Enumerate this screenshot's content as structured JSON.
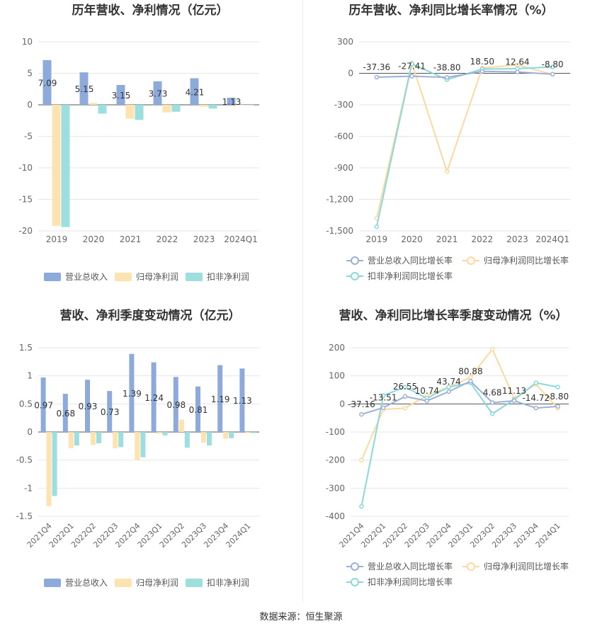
{
  "source_text": "数据来源：恒生聚源",
  "colors": {
    "revenue": "#8eaadb",
    "net_profit": "#fde3b0",
    "deducted": "#9ddede",
    "revenue_line": "#9bb0d9",
    "net_profit_line": "#fcd9a0",
    "deducted_line": "#8ad8dc",
    "grid": "#e6e6e6",
    "axis_text": "#666666"
  },
  "chart_data": [
    {
      "type": "bar",
      "title": "历年营收、净利情况（亿元）",
      "categories": [
        "2019",
        "2020",
        "2021",
        "2022",
        "2023",
        "2024Q1"
      ],
      "ylim": [
        -20,
        10
      ],
      "yticks": [
        10,
        5,
        0,
        -5,
        -10,
        -15,
        -20
      ],
      "grid": true,
      "legend_position": "bottom",
      "series": [
        {
          "name": "营业总收入",
          "values": [
            7.09,
            5.15,
            3.15,
            3.73,
            4.21,
            1.13
          ],
          "labels": [
            "7.09",
            "5.15",
            "3.15",
            "3.73",
            "4.21",
            "1.13"
          ]
        },
        {
          "name": "归母净利润",
          "values": [
            -19.2,
            0.3,
            -2.2,
            -1.2,
            -0.3,
            -0.05
          ]
        },
        {
          "name": "扣非净利润",
          "values": [
            -19.4,
            -1.4,
            -2.4,
            -1.1,
            -0.6,
            -0.05
          ]
        }
      ]
    },
    {
      "type": "line",
      "title": "历年营收、净利同比增长率情况（%）",
      "categories": [
        "2019",
        "2020",
        "2021",
        "2022",
        "2023",
        "2024Q1"
      ],
      "ylim": [
        -1500,
        300
      ],
      "yticks": [
        300,
        0,
        -300,
        -600,
        -900,
        -1200,
        -1500
      ],
      "ytick_labels": [
        "300",
        "0",
        "-300",
        "-600",
        "-900",
        "-1,200",
        "-1,500"
      ],
      "grid": true,
      "legend_position": "bottom",
      "series": [
        {
          "name": "营业总收入同比增长率",
          "values": [
            -37.36,
            -27.41,
            -38.8,
            18.5,
            12.64,
            -8.8
          ],
          "labels": [
            "-37.36",
            "-27.41",
            "-38.80",
            "18.50",
            "12.64",
            "-8.80"
          ]
        },
        {
          "name": "归母净利润同比增长率",
          "values": [
            -1380,
            100,
            -935,
            50,
            80,
            -10
          ]
        },
        {
          "name": "扣非净利润同比增长率",
          "values": [
            -1460,
            90,
            -60,
            40,
            45,
            60
          ]
        }
      ]
    },
    {
      "type": "bar",
      "title": "营收、净利季度变动情况（亿元）",
      "categories": [
        "2021Q4",
        "2022Q1",
        "2022Q2",
        "2022Q3",
        "2022Q4",
        "2023Q1",
        "2023Q2",
        "2023Q3",
        "2023Q4",
        "2024Q1"
      ],
      "ylim": [
        -1.5,
        1.5
      ],
      "yticks": [
        1.5,
        1,
        0.5,
        0,
        -0.5,
        -1,
        -1.5
      ],
      "grid": true,
      "legend_position": "bottom",
      "series": [
        {
          "name": "营业总收入",
          "values": [
            0.97,
            0.68,
            0.93,
            0.73,
            1.39,
            1.24,
            0.98,
            0.81,
            1.19,
            1.13
          ],
          "labels": [
            "0.97",
            "0.68",
            "0.93",
            "0.73",
            "1.39",
            "1.24",
            "0.98",
            "0.81",
            "1.19",
            "1.13"
          ]
        },
        {
          "name": "归母净利润",
          "values": [
            -1.32,
            -0.29,
            -0.23,
            -0.29,
            -0.5,
            -0.03,
            0.22,
            -0.19,
            -0.12,
            -0.02
          ]
        },
        {
          "name": "扣非净利润",
          "values": [
            -1.14,
            -0.24,
            -0.2,
            -0.27,
            -0.45,
            -0.06,
            -0.28,
            -0.24,
            -0.11,
            -0.02
          ]
        }
      ]
    },
    {
      "type": "line",
      "title": "营收、净利同比增长率季度变动情况（%）",
      "categories": [
        "2021Q4",
        "2022Q1",
        "2022Q2",
        "2022Q3",
        "2022Q4",
        "2023Q1",
        "2023Q2",
        "2023Q3",
        "2023Q4",
        "2024Q1"
      ],
      "ylim": [
        -400,
        200
      ],
      "yticks": [
        200,
        100,
        0,
        -100,
        -200,
        -300,
        -400
      ],
      "grid": true,
      "legend_position": "bottom",
      "series": [
        {
          "name": "营业总收入同比增长率",
          "values": [
            -37.16,
            -13.51,
            26.55,
            10.74,
            43.74,
            80.88,
            4.68,
            11.13,
            -14.72,
            -8.8
          ],
          "labels": [
            "-37.16",
            "-13.51",
            "26.55",
            "10.74",
            "43.74",
            "80.88",
            "4.68",
            "11.13",
            "-14.72",
            "-8.80"
          ]
        },
        {
          "name": "归母净利润同比增长率",
          "values": [
            -200,
            -20,
            -15,
            30,
            60,
            95,
            195,
            20,
            70,
            -15
          ]
        },
        {
          "name": "扣非净利润同比增长率",
          "values": [
            -365,
            30,
            60,
            20,
            60,
            75,
            -35,
            15,
            75,
            60
          ]
        }
      ]
    }
  ]
}
